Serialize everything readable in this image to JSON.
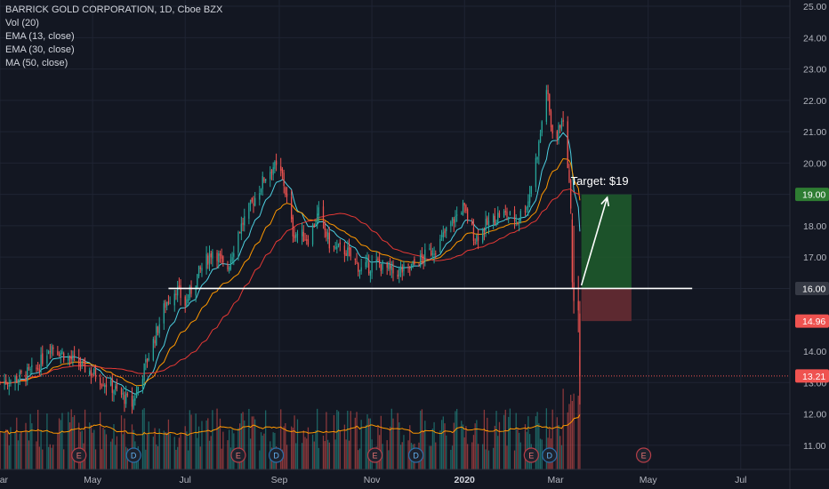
{
  "header": {
    "title": "BARRICK GOLD CORPORATION, 1D, Cboe BZX",
    "indicators": [
      "Vol (20)",
      "EMA (13, close)",
      "EMA (30, close)",
      "MA (50, close)"
    ]
  },
  "colors": {
    "background": "#131722",
    "grid": "#1f2433",
    "up": "#26a69a",
    "down": "#ef5350",
    "ema13": "#4dd0e1",
    "ema30": "#ff9800",
    "ma50": "#e53935",
    "level": "#ffffff",
    "target_zone": "#1f5d2c",
    "stop_zone": "#6b2d33"
  },
  "chart_data": {
    "type": "candlestick",
    "title": "BARRICK GOLD CORPORATION, 1D, Cboe BZX",
    "x_axis": {
      "tick_labels": [
        "Mar",
        "May",
        "Jul",
        "Sep",
        "Nov",
        "2020",
        "Mar",
        "May",
        "Jul"
      ],
      "range": [
        "2019-03-01",
        "2020-07-31"
      ]
    },
    "y_axis": {
      "tick_labels": [
        "11.00",
        "12.00",
        "13.00",
        "14.00",
        "15.00",
        "16.00",
        "17.00",
        "18.00",
        "19.00",
        "20.00",
        "21.00",
        "22.00",
        "23.00",
        "24.00",
        "25.00"
      ],
      "range": [
        10.2,
        25.2
      ],
      "side": "right"
    },
    "price_path": [
      [
        "2019-03-01",
        13.0
      ],
      [
        "2019-03-10",
        13.1
      ],
      [
        "2019-03-25",
        13.4
      ],
      [
        "2019-04-03",
        14.2
      ],
      [
        "2019-04-15",
        13.8
      ],
      [
        "2019-05-01",
        13.3
      ],
      [
        "2019-05-15",
        12.8
      ],
      [
        "2019-05-27",
        12.3
      ],
      [
        "2019-06-03",
        13.3
      ],
      [
        "2019-06-10",
        14.3
      ],
      [
        "2019-06-18",
        15.5
      ],
      [
        "2019-06-25",
        16.0
      ],
      [
        "2019-07-01",
        15.5
      ],
      [
        "2019-07-10",
        16.5
      ],
      [
        "2019-07-20",
        17.3
      ],
      [
        "2019-07-28",
        16.5
      ],
      [
        "2019-08-05",
        17.8
      ],
      [
        "2019-08-15",
        18.8
      ],
      [
        "2019-08-23",
        19.6
      ],
      [
        "2019-08-28",
        19.9
      ],
      [
        "2019-09-03",
        19.6
      ],
      [
        "2019-09-10",
        17.8
      ],
      [
        "2019-09-20",
        17.6
      ],
      [
        "2019-09-27",
        18.4
      ],
      [
        "2019-10-05",
        17.3
      ],
      [
        "2019-10-15",
        17.2
      ],
      [
        "2019-10-25",
        16.6
      ],
      [
        "2019-11-05",
        16.8
      ],
      [
        "2019-11-15",
        16.5
      ],
      [
        "2019-11-25",
        16.6
      ],
      [
        "2019-12-05",
        17.0
      ],
      [
        "2019-12-15",
        17.4
      ],
      [
        "2019-12-22",
        18.0
      ],
      [
        "2019-12-31",
        18.6
      ],
      [
        "2020-01-08",
        17.6
      ],
      [
        "2020-01-15",
        18.0
      ],
      [
        "2020-01-25",
        18.4
      ],
      [
        "2020-02-05",
        18.2
      ],
      [
        "2020-02-12",
        18.8
      ],
      [
        "2020-02-19",
        20.6
      ],
      [
        "2020-02-24",
        22.4
      ],
      [
        "2020-02-27",
        21.2
      ],
      [
        "2020-03-02",
        20.8
      ],
      [
        "2020-03-05",
        21.5
      ],
      [
        "2020-03-09",
        20.0
      ],
      [
        "2020-03-11",
        18.5
      ],
      [
        "2020-03-12",
        16.0
      ],
      [
        "2020-03-13",
        15.5
      ],
      [
        "2020-03-16",
        15.0
      ],
      [
        "2020-03-17",
        13.2
      ]
    ],
    "series": [
      {
        "name": "EMA (13, close)",
        "color": "#4dd0e1"
      },
      {
        "name": "EMA (30, close)",
        "color": "#ff9800"
      },
      {
        "name": "MA (50, close)",
        "color": "#e53935"
      },
      {
        "name": "Vol (20)",
        "color": "#26a69a"
      }
    ],
    "price_labels": [
      {
        "value": 19.0,
        "text": "19.00",
        "color": "#2e7d32"
      },
      {
        "value": 16.0,
        "text": "16.00",
        "color": "#363a45"
      },
      {
        "value": 14.96,
        "text": "14.96",
        "color": "#ef5350"
      },
      {
        "value": 13.21,
        "text": "13.21",
        "color": "#ef5350"
      }
    ],
    "horizontal_level": {
      "value": 16.0,
      "from": "2019-06-20",
      "to": "2020-05-30"
    },
    "target_zone": {
      "from": "2020-03-18",
      "to": "2020-04-20",
      "low": 16.0,
      "high": 19.0
    },
    "stop_zone": {
      "from": "2020-03-18",
      "to": "2020-04-20",
      "low": 14.96,
      "high": 16.0
    },
    "current_price_line": 13.21,
    "annotation": {
      "text": "Target: $19",
      "anchor": [
        "2020-03-30",
        19.3
      ]
    },
    "arrow": {
      "from": [
        "2020-03-18",
        16.1
      ],
      "to": [
        "2020-04-04",
        18.9
      ]
    },
    "events": [
      {
        "label": "E",
        "date": "2019-04-22"
      },
      {
        "label": "D",
        "date": "2019-05-28"
      },
      {
        "label": "E",
        "date": "2019-08-05"
      },
      {
        "label": "D",
        "date": "2019-08-30"
      },
      {
        "label": "E",
        "date": "2019-11-03"
      },
      {
        "label": "D",
        "date": "2019-11-30"
      },
      {
        "label": "E",
        "date": "2020-02-14"
      },
      {
        "label": "D",
        "date": "2020-02-26"
      },
      {
        "label": "E",
        "date": "2020-04-28"
      }
    ]
  }
}
